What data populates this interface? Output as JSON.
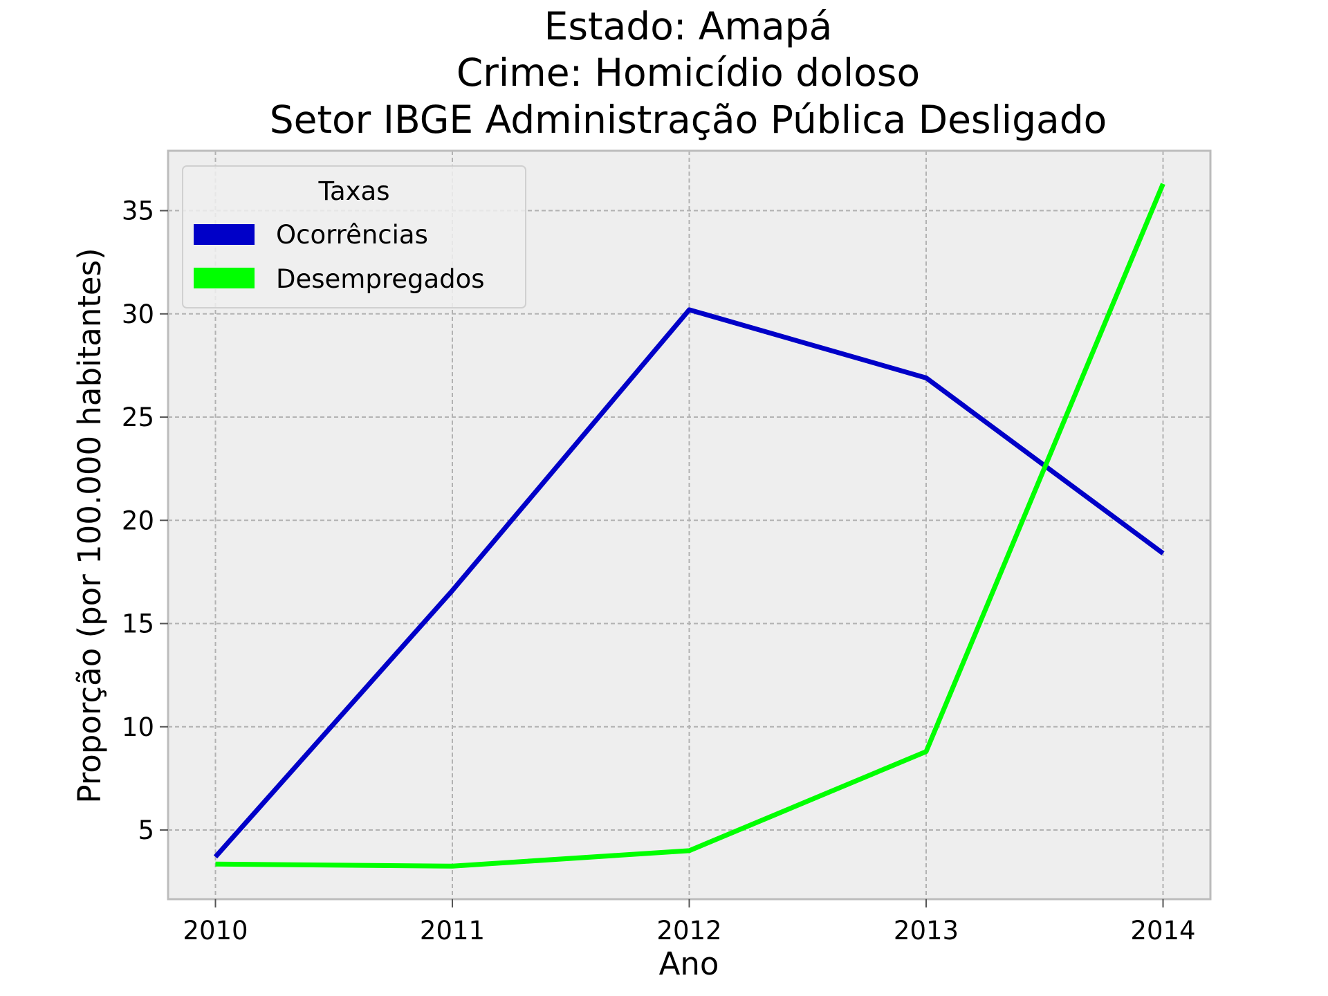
{
  "chart_data": {
    "type": "line",
    "title_lines": [
      "Estado: Amapá",
      "Crime: Homicídio doloso",
      "Setor IBGE  Administração Pública   Desligado"
    ],
    "xlabel": "Ano",
    "ylabel": "Proporção (por 100.000 habitantes)",
    "x": [
      2010,
      2011,
      2012,
      2013,
      2014
    ],
    "x_tick_labels": [
      "2010",
      "2011",
      "2012",
      "2013",
      "2014"
    ],
    "xlim": [
      2009.8,
      2014.2
    ],
    "y_ticks": [
      5,
      10,
      15,
      20,
      25,
      30,
      35
    ],
    "y_tick_labels": [
      "5",
      "10",
      "15",
      "20",
      "25",
      "30",
      "35"
    ],
    "ylim": [
      1.65,
      37.9
    ],
    "grid": true,
    "legend": {
      "title": "Taxas",
      "placement": "upper-left"
    },
    "series": [
      {
        "name": "Ocorrências",
        "color": "#0000c8",
        "values": [
          3.7,
          16.6,
          30.2,
          26.9,
          18.4
        ]
      },
      {
        "name": "Desempregados",
        "color": "#00ff00",
        "values": [
          3.35,
          3.25,
          4.0,
          8.8,
          36.3
        ]
      }
    ]
  }
}
